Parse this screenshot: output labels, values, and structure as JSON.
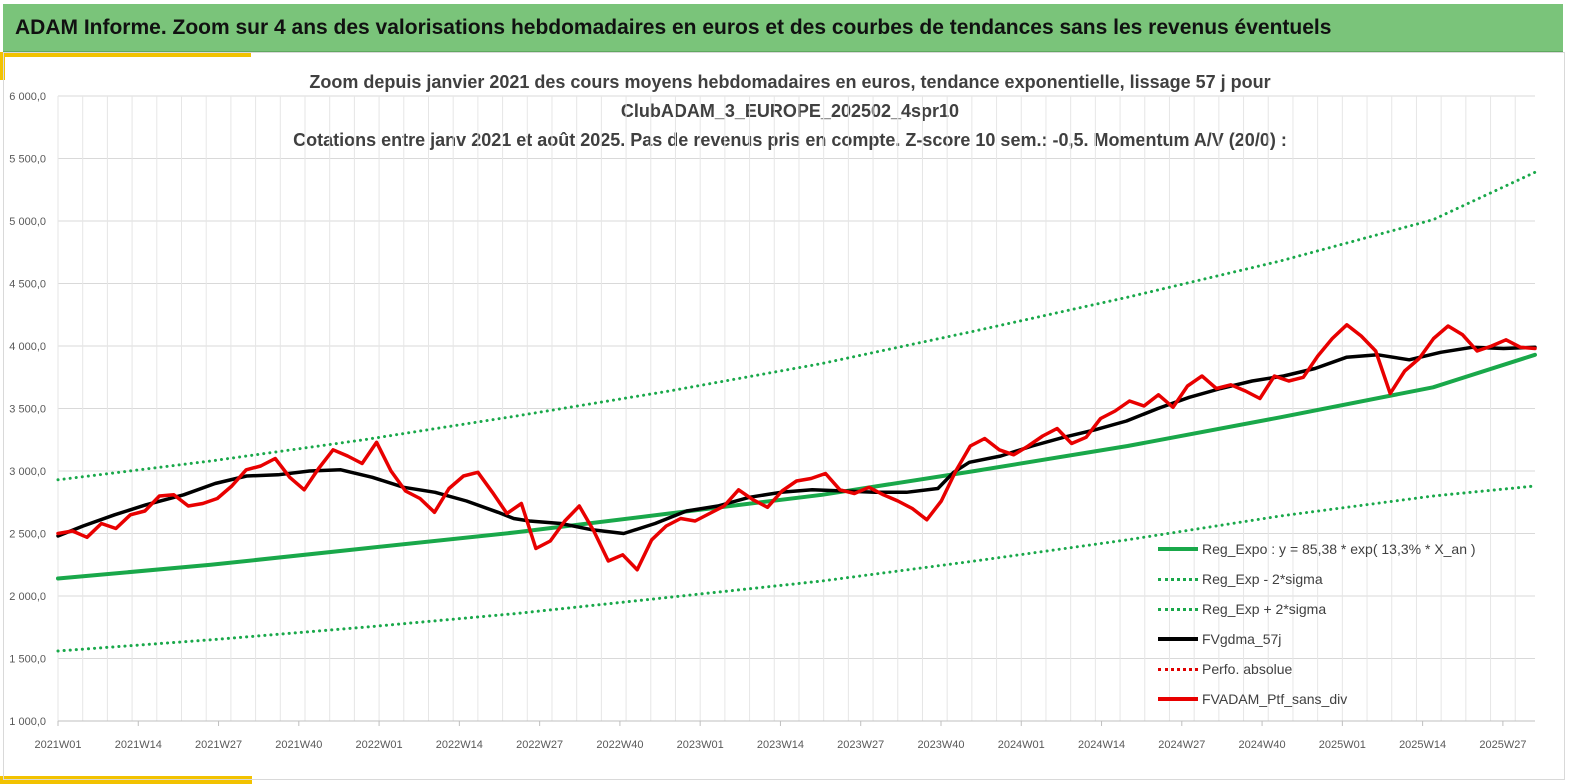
{
  "header": {
    "banner_title": "ADAM Informe. Zoom sur 4 ans des valorisations hebdomadaires en euros et des courbes de tendances sans les revenus éventuels"
  },
  "colors": {
    "banner_bg": "#7ac47a",
    "accent": "#f2c200",
    "reg_expo": "#19a84a",
    "fvgdma": "#000000",
    "perfo": "#e00000",
    "portfolio": "#e80000",
    "grid": "#d9d9d9"
  },
  "chart_data": {
    "type": "line",
    "title_lines": [
      "Zoom depuis janvier 2021 des cours moyens hebdomadaires  en euros, tendance exponentielle, lissage 57 j pour",
      "ClubADAM_3_EUROPE_202502_4spr10",
      "Cotations  entre janv 2021 et août 2025. Pas de revenus pris en compte. Z-score 10 sem.: -0,5. Momentum A/V (20/0) :"
    ],
    "ylim": [
      1000,
      6000
    ],
    "y_ticks": [
      "1 000,0",
      "1 500,0",
      "2 000,0",
      "2 500,0",
      "3 000,0",
      "3 500,0",
      "4 000,0",
      "4 500,0",
      "5 000,0",
      "5 500,0",
      "6 000,0"
    ],
    "y_tick_values": [
      1000,
      1500,
      2000,
      2500,
      3000,
      3500,
      4000,
      4500,
      5000,
      5500,
      6000
    ],
    "x_ticks": [
      "2021W01",
      "2021W14",
      "2021W27",
      "2021W40",
      "2022W01",
      "2022W14",
      "2022W27",
      "2022W40",
      "2023W01",
      "2023W14",
      "2023W27",
      "2023W40",
      "2024W01",
      "2024W14",
      "2024W27",
      "2024W40",
      "2025W01",
      "2025W14",
      "2025W27"
    ],
    "x_week_count": 240,
    "grid": true,
    "legend_position": "bottom-right",
    "series": [
      {
        "name": "Reg_Expo : y = 85,38 * exp( 13,3% *  X_an )",
        "style": "solid",
        "color": "#19a84a",
        "points": [
          [
            0,
            2140
          ],
          [
            30,
            2250
          ],
          [
            60,
            2380
          ],
          [
            90,
            2510
          ],
          [
            120,
            2660
          ],
          [
            150,
            2810
          ],
          [
            180,
            3000
          ],
          [
            210,
            3200
          ],
          [
            240,
            3430
          ],
          [
            270,
            3670
          ],
          [
            290,
            3930
          ]
        ]
      },
      {
        "name": "Reg_Exp - 2*sigma",
        "style": "dotted",
        "color": "#19a84a",
        "points": [
          [
            0,
            1560
          ],
          [
            30,
            1650
          ],
          [
            60,
            1750
          ],
          [
            90,
            1860
          ],
          [
            120,
            1990
          ],
          [
            150,
            2120
          ],
          [
            180,
            2280
          ],
          [
            210,
            2450
          ],
          [
            240,
            2640
          ],
          [
            270,
            2800
          ],
          [
            290,
            2880
          ]
        ]
      },
      {
        "name": "Reg_Exp + 2*sigma",
        "style": "dotted",
        "color": "#19a84a",
        "points": [
          [
            0,
            2930
          ],
          [
            30,
            3080
          ],
          [
            60,
            3250
          ],
          [
            90,
            3440
          ],
          [
            120,
            3640
          ],
          [
            150,
            3860
          ],
          [
            180,
            4120
          ],
          [
            210,
            4390
          ],
          [
            240,
            4680
          ],
          [
            270,
            5010
          ],
          [
            290,
            5390
          ]
        ]
      },
      {
        "name": "FVgdma_57j",
        "style": "solid",
        "color": "#000000",
        "points": [
          [
            0,
            2480
          ],
          [
            8,
            2560
          ],
          [
            18,
            2650
          ],
          [
            28,
            2730
          ],
          [
            40,
            2810
          ],
          [
            50,
            2900
          ],
          [
            60,
            2960
          ],
          [
            70,
            2970
          ],
          [
            80,
            3000
          ],
          [
            90,
            3010
          ],
          [
            100,
            2950
          ],
          [
            110,
            2870
          ],
          [
            120,
            2830
          ],
          [
            130,
            2760
          ],
          [
            140,
            2670
          ],
          [
            145,
            2620
          ],
          [
            150,
            2600
          ],
          [
            160,
            2580
          ],
          [
            170,
            2530
          ],
          [
            180,
            2500
          ],
          [
            190,
            2580
          ],
          [
            200,
            2680
          ],
          [
            210,
            2720
          ],
          [
            220,
            2790
          ],
          [
            230,
            2830
          ],
          [
            240,
            2850
          ],
          [
            250,
            2840
          ],
          [
            260,
            2830
          ],
          [
            270,
            2830
          ],
          [
            280,
            2860
          ],
          [
            285,
            2990
          ],
          [
            290,
            3070
          ],
          [
            300,
            3120
          ],
          [
            310,
            3200
          ],
          [
            320,
            3270
          ],
          [
            330,
            3330
          ],
          [
            340,
            3400
          ],
          [
            350,
            3500
          ],
          [
            360,
            3590
          ],
          [
            370,
            3660
          ],
          [
            380,
            3720
          ],
          [
            390,
            3760
          ],
          [
            400,
            3820
          ],
          [
            410,
            3910
          ],
          [
            420,
            3930
          ],
          [
            430,
            3890
          ],
          [
            440,
            3950
          ],
          [
            450,
            3990
          ],
          [
            460,
            3980
          ],
          [
            470,
            3990
          ]
        ]
      },
      {
        "name": "Perfo. absolue",
        "style": "dotted",
        "color": "#e00000",
        "points": []
      },
      {
        "name": "FVADAM_Ptf_sans_div",
        "style": "solid",
        "color": "#e80000",
        "points": [
          [
            0,
            2500
          ],
          [
            4,
            2520
          ],
          [
            8,
            2470
          ],
          [
            12,
            2580
          ],
          [
            16,
            2540
          ],
          [
            20,
            2650
          ],
          [
            24,
            2680
          ],
          [
            28,
            2800
          ],
          [
            32,
            2810
          ],
          [
            36,
            2720
          ],
          [
            40,
            2740
          ],
          [
            44,
            2780
          ],
          [
            48,
            2880
          ],
          [
            52,
            3010
          ],
          [
            56,
            3040
          ],
          [
            60,
            3100
          ],
          [
            64,
            2950
          ],
          [
            68,
            2850
          ],
          [
            72,
            3020
          ],
          [
            76,
            3170
          ],
          [
            80,
            3120
          ],
          [
            84,
            3060
          ],
          [
            88,
            3230
          ],
          [
            92,
            3000
          ],
          [
            96,
            2840
          ],
          [
            100,
            2780
          ],
          [
            104,
            2670
          ],
          [
            108,
            2860
          ],
          [
            112,
            2960
          ],
          [
            116,
            2990
          ],
          [
            120,
            2830
          ],
          [
            124,
            2660
          ],
          [
            128,
            2740
          ],
          [
            132,
            2380
          ],
          [
            136,
            2440
          ],
          [
            140,
            2600
          ],
          [
            144,
            2720
          ],
          [
            148,
            2520
          ],
          [
            152,
            2280
          ],
          [
            156,
            2330
          ],
          [
            160,
            2210
          ],
          [
            164,
            2450
          ],
          [
            168,
            2560
          ],
          [
            172,
            2620
          ],
          [
            176,
            2600
          ],
          [
            180,
            2660
          ],
          [
            184,
            2720
          ],
          [
            188,
            2850
          ],
          [
            192,
            2770
          ],
          [
            196,
            2710
          ],
          [
            200,
            2840
          ],
          [
            204,
            2920
          ],
          [
            208,
            2940
          ],
          [
            212,
            2980
          ],
          [
            216,
            2850
          ],
          [
            220,
            2820
          ],
          [
            224,
            2870
          ],
          [
            228,
            2810
          ],
          [
            232,
            2760
          ],
          [
            236,
            2700
          ],
          [
            240,
            2610
          ],
          [
            244,
            2760
          ],
          [
            248,
            3000
          ],
          [
            252,
            3200
          ],
          [
            256,
            3260
          ],
          [
            260,
            3170
          ],
          [
            264,
            3130
          ],
          [
            268,
            3200
          ],
          [
            272,
            3280
          ],
          [
            276,
            3340
          ],
          [
            280,
            3220
          ],
          [
            284,
            3270
          ],
          [
            288,
            3420
          ],
          [
            292,
            3480
          ],
          [
            296,
            3560
          ],
          [
            300,
            3520
          ],
          [
            304,
            3610
          ],
          [
            308,
            3510
          ],
          [
            312,
            3680
          ],
          [
            316,
            3760
          ],
          [
            320,
            3660
          ],
          [
            324,
            3690
          ],
          [
            328,
            3640
          ],
          [
            332,
            3580
          ],
          [
            336,
            3760
          ],
          [
            340,
            3720
          ],
          [
            344,
            3750
          ],
          [
            348,
            3920
          ],
          [
            352,
            4060
          ],
          [
            356,
            4170
          ],
          [
            360,
            4080
          ],
          [
            364,
            3960
          ],
          [
            368,
            3620
          ],
          [
            372,
            3800
          ],
          [
            376,
            3900
          ],
          [
            380,
            4060
          ],
          [
            384,
            4160
          ],
          [
            388,
            4090
          ],
          [
            392,
            3960
          ],
          [
            396,
            4000
          ],
          [
            400,
            4050
          ],
          [
            404,
            3990
          ],
          [
            408,
            3980
          ]
        ]
      }
    ]
  }
}
